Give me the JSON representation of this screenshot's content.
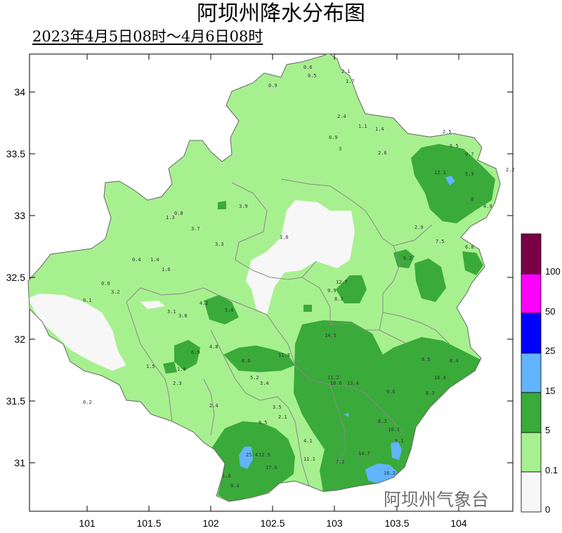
{
  "title": "阿坝州降水分布图",
  "subtitle": "2023年4月5日08时～4月6日08时",
  "watermark": "阿坝州气象台",
  "axes": {
    "x_ticks": [
      "101",
      "101.5",
      "102",
      "102.5",
      "103",
      "103.5",
      "104"
    ],
    "y_ticks": [
      "34",
      "33.5",
      "33",
      "32.5",
      "32",
      "31.5",
      "31"
    ]
  },
  "legend": {
    "levels": [
      {
        "label": "100",
        "color": "#7a0046"
      },
      {
        "label": "50",
        "color": "#ff00ff"
      },
      {
        "label": "25",
        "color": "#0000ff"
      },
      {
        "label": "15",
        "color": "#62b4ff"
      },
      {
        "label": "5",
        "color": "#3aaa3a"
      },
      {
        "label": "0.1",
        "color": "#a7f08f"
      },
      {
        "label": "0",
        "color": "#f7f7f7"
      }
    ],
    "bin_colors_top_to_bottom": [
      "#7a0046",
      "#ff00ff",
      "#0000ff",
      "#62b4ff",
      "#3aaa3a",
      "#a7f08f",
      "#f7f7f7"
    ]
  },
  "station_values": [
    "0.6",
    "0.5",
    "0.9",
    "2.1",
    "1.7",
    "2.4",
    "1.1",
    "1.4",
    "0.9",
    "3",
    "2.6",
    "2.5",
    "6.5",
    "9.7",
    "12.1",
    "5.9",
    "4.9",
    "8",
    "2.2",
    "3.9",
    "1.3",
    "0.8",
    "3.7",
    "3.3",
    "1.6",
    "2.9",
    "7.5",
    "6.8",
    "9.2",
    "0.4",
    "1.4",
    "1.6",
    "0.9",
    "3.2",
    "0.1",
    "3.1",
    "3.6",
    "4.2",
    "5.6",
    "12.7",
    "8.3",
    "9.9",
    "14.5",
    "4.8",
    "6.9",
    "8.6",
    "11.3",
    "5.2",
    "11.2",
    "13.4",
    "10.6",
    "8.5",
    "8.4",
    "10.4",
    "9.6",
    "6.3",
    "2.3",
    "1.5",
    "1.9",
    "3.4",
    "2.4",
    "3.5",
    "6.5",
    "2.1",
    "8.3",
    "10.3",
    "9.1",
    "14.7",
    "12.9",
    "25.4",
    "17.6",
    "16.3",
    "11.1",
    "7.2",
    "4.1",
    "1.8",
    "0.4",
    "0.2"
  ]
}
